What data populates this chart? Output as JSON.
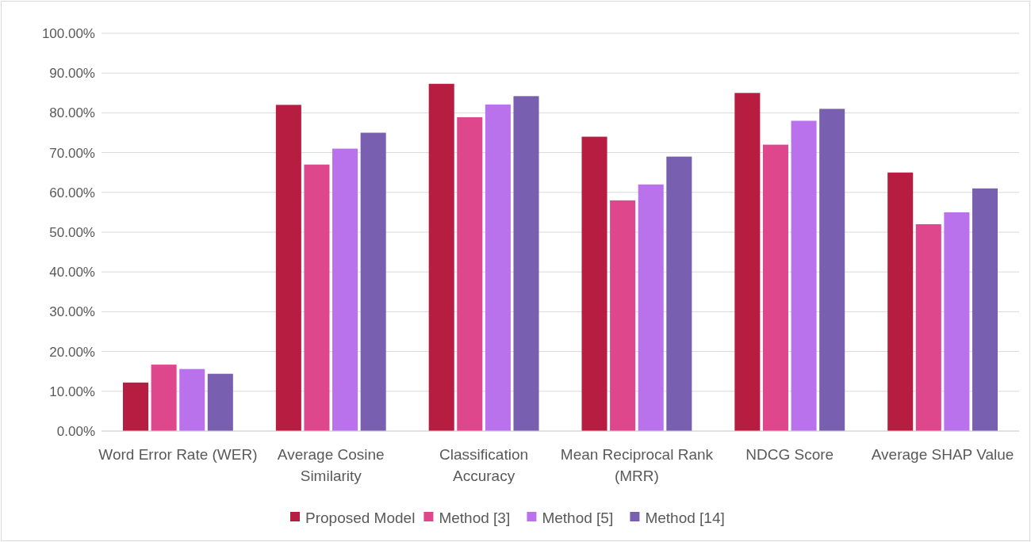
{
  "chart_data": {
    "type": "bar",
    "categories": [
      "Word Error Rate (WER)",
      "Average Cosine Similarity",
      "Classification Accuracy",
      "Mean Reciprocal Rank (MRR)",
      "NDCG Score",
      "Average SHAP Value"
    ],
    "series": [
      {
        "name": "Proposed Model",
        "color": "#b71d40",
        "values": [
          12.2,
          82,
          87.3,
          74,
          85,
          65
        ]
      },
      {
        "name": "Method [3]",
        "color": "#de478c",
        "values": [
          16.7,
          67,
          78.9,
          58,
          72,
          52
        ]
      },
      {
        "name": "Method [5]",
        "color": "#b971ec",
        "values": [
          15.6,
          71,
          82.1,
          62,
          78,
          55
        ]
      },
      {
        "name": "Method [14]",
        "color": "#785faf",
        "values": [
          14.4,
          75,
          84.2,
          69,
          81,
          61
        ]
      }
    ],
    "ylim": [
      0,
      100
    ],
    "yticks": [
      {
        "value": 0,
        "label": "0.00%"
      },
      {
        "value": 10,
        "label": "10.00%"
      },
      {
        "value": 20,
        "label": "20.00%"
      },
      {
        "value": 30,
        "label": "30.00%"
      },
      {
        "value": 40,
        "label": "40.00%"
      },
      {
        "value": 50,
        "label": "50.00%"
      },
      {
        "value": 60,
        "label": "60.00%"
      },
      {
        "value": 70,
        "label": "70.00%"
      },
      {
        "value": 80,
        "label": "80.00%"
      },
      {
        "value": 90,
        "label": "90.00%"
      },
      {
        "value": 100,
        "label": "100.00%"
      }
    ],
    "grid": "y",
    "legend": "bottom"
  }
}
